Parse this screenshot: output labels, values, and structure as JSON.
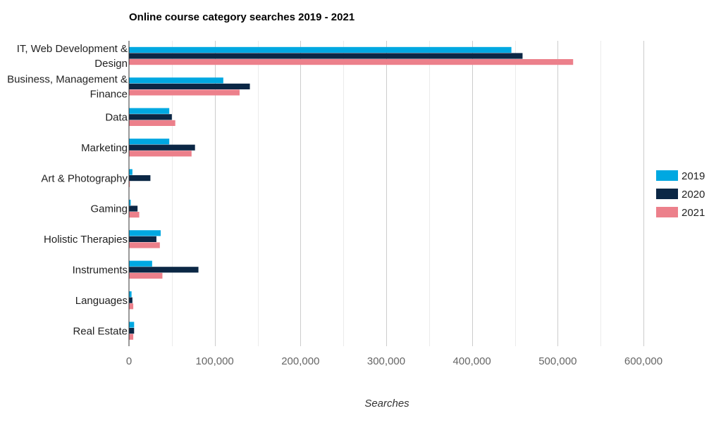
{
  "chart_data": {
    "type": "bar",
    "orientation": "horizontal",
    "title": "Online course category searches 2019 - 2021",
    "xlabel": "Searches",
    "ylabel": "",
    "xlim": [
      0,
      600000
    ],
    "x_ticks": [
      0,
      100000,
      200000,
      300000,
      400000,
      500000,
      600000
    ],
    "x_tick_labels": [
      "0",
      "100,000",
      "200,000",
      "300,000",
      "400,000",
      "500,000",
      "600,000"
    ],
    "grid": true,
    "legend_position": "right",
    "categories": [
      [
        "IT, Web Development &",
        "Design"
      ],
      [
        "Business, Management &",
        "Finance"
      ],
      [
        "Data"
      ],
      [
        "Marketing"
      ],
      [
        "Art & Photography"
      ],
      [
        "Gaming"
      ],
      [
        "Holistic Therapies"
      ],
      [
        "Instruments"
      ],
      [
        "Languages"
      ],
      [
        "Real Estate"
      ]
    ],
    "series": [
      {
        "name": "2019",
        "color": "#00a8e1",
        "values": [
          446000,
          110000,
          47000,
          47000,
          4000,
          2000,
          37000,
          27000,
          3000,
          6000
        ]
      },
      {
        "name": "2020",
        "color": "#0b2745",
        "values": [
          459000,
          141000,
          50000,
          77000,
          25000,
          10000,
          32000,
          81000,
          4000,
          6000
        ]
      },
      {
        "name": "2021",
        "color": "#ec808b",
        "values": [
          518000,
          129000,
          54000,
          73000,
          1000,
          12000,
          36000,
          39000,
          5000,
          5000
        ]
      }
    ]
  }
}
